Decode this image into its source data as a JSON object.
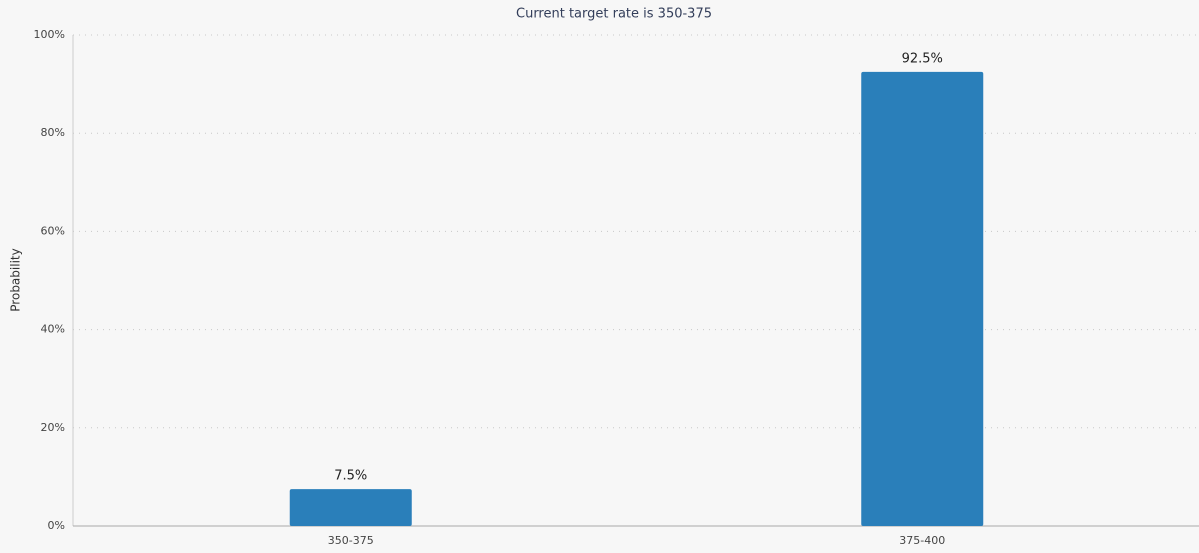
{
  "chart_data": {
    "type": "bar",
    "title": "Current target rate is 350-375",
    "y_label": "Probability",
    "categories": [
      "350-375",
      "375-400"
    ],
    "values": [
      7.5,
      92.5
    ],
    "value_labels": [
      "7.5%",
      "92.5%"
    ],
    "color": "#2a7fba",
    "ylim": [
      0,
      100
    ],
    "yticks": [
      {
        "value": 0,
        "label": "0%"
      },
      {
        "value": 20,
        "label": "20%"
      },
      {
        "value": 40,
        "label": "40%"
      },
      {
        "value": 60,
        "label": "60%"
      },
      {
        "value": 80,
        "label": "80%"
      },
      {
        "value": 100,
        "label": "100%"
      }
    ],
    "grid": true
  }
}
